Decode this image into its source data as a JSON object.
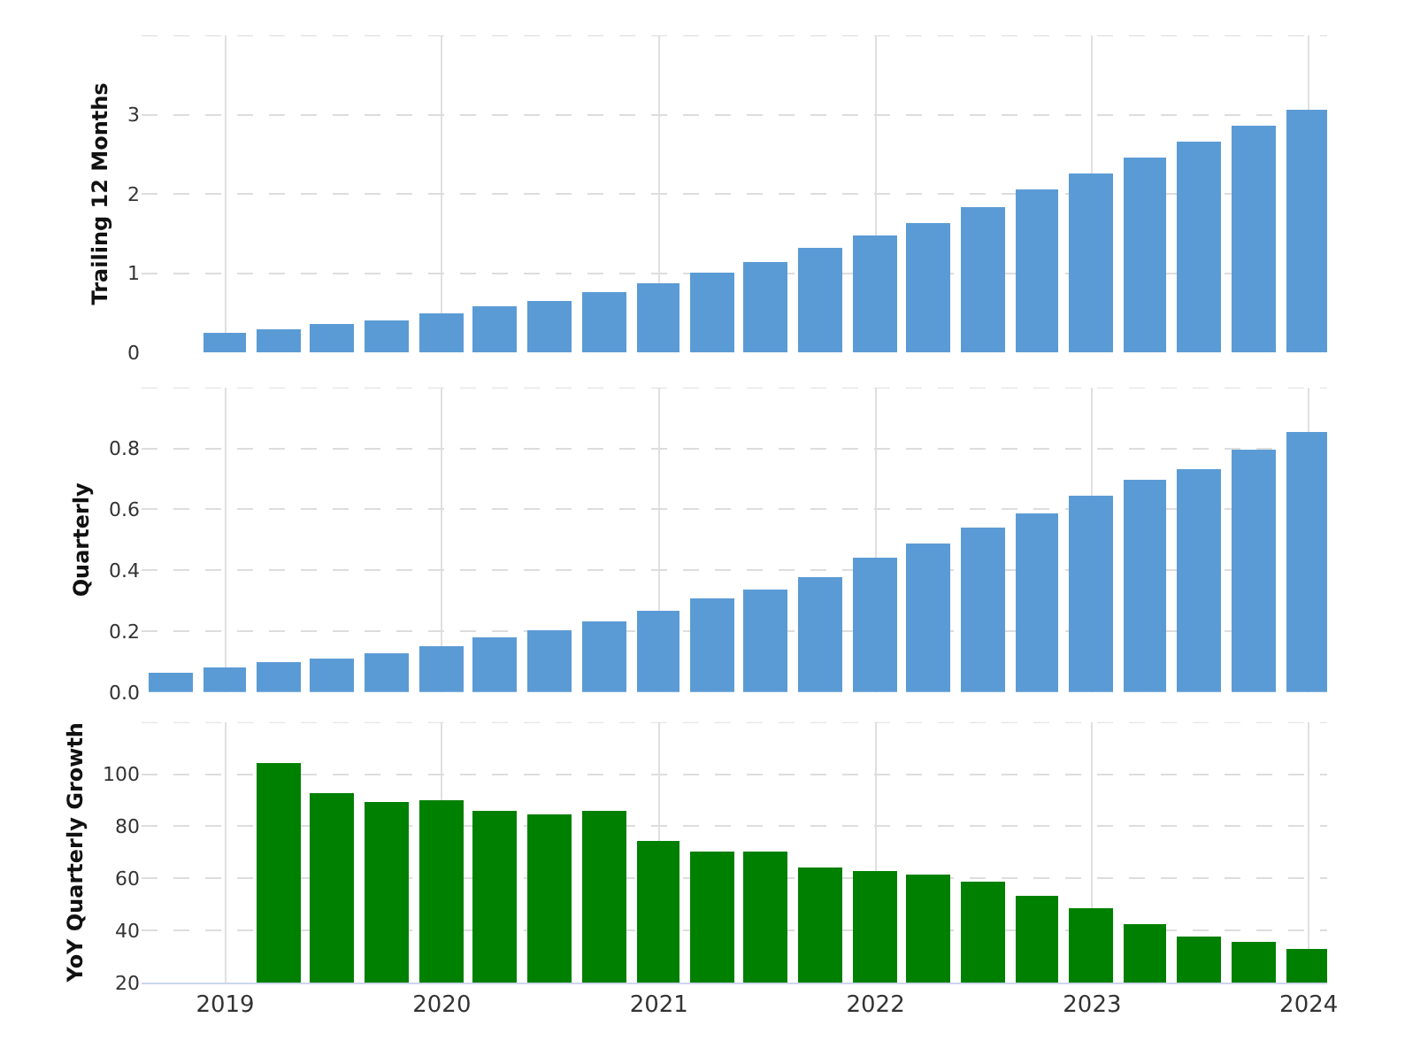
{
  "chart_data": [
    {
      "type": "bar",
      "ylabel": "Trailing 12 Months",
      "color": "#5b9bd5",
      "x": [
        "2018-12-31",
        "2019-03-31",
        "2019-06-30",
        "2019-09-30",
        "2019-12-31",
        "2020-03-31",
        "2020-06-30",
        "2020-09-30",
        "2020-12-31",
        "2021-03-31",
        "2021-06-30",
        "2021-09-30",
        "2021-12-31",
        "2022-03-31",
        "2022-06-30",
        "2022-09-30",
        "2022-12-31",
        "2023-03-31",
        "2023-06-30",
        "2023-09-30",
        "2023-12-31"
      ],
      "values": [
        0.25,
        0.3,
        0.36,
        0.41,
        0.5,
        0.57,
        0.65,
        0.77,
        0.87,
        1.01,
        1.15,
        1.31,
        1.47,
        1.64,
        1.84,
        2.05,
        2.25,
        2.45,
        2.65,
        2.85,
        3.07
      ],
      "xlim": [
        "2018-08-13",
        "2024-02-01"
      ],
      "xticks": [
        "2019",
        "2020",
        "2021",
        "2022",
        "2023",
        "2024"
      ],
      "ylim": [
        0,
        4
      ],
      "yticks": [
        0,
        1,
        2,
        3,
        {
          "value": 4,
          "label": null
        }
      ],
      "grid": true,
      "tick_labels": "y"
    },
    {
      "type": "bar",
      "ylabel": "Quarterly",
      "color": "#5b9bd5",
      "x": [
        "2018-09-30",
        "2018-12-31",
        "2019-03-31",
        "2019-06-30",
        "2019-09-30",
        "2019-12-31",
        "2020-03-31",
        "2020-06-30",
        "2020-09-30",
        "2020-12-31",
        "2021-03-31",
        "2021-06-30",
        "2021-09-30",
        "2021-12-31",
        "2022-03-31",
        "2022-06-30",
        "2022-09-30",
        "2022-12-31",
        "2023-03-31",
        "2023-06-30",
        "2023-09-30",
        "2023-12-31"
      ],
      "values": [
        0.065,
        0.08,
        0.1,
        0.11,
        0.13,
        0.15,
        0.18,
        0.205,
        0.23,
        0.27,
        0.31,
        0.34,
        0.38,
        0.44,
        0.49,
        0.54,
        0.59,
        0.645,
        0.7,
        0.735,
        0.795,
        0.855
      ],
      "xlim": [
        "2018-08-13",
        "2024-02-01"
      ],
      "xticks": [
        "2019",
        "2020",
        "2021",
        "2022",
        "2023",
        "2024"
      ],
      "ylim": [
        0,
        1
      ],
      "yticks": [
        {
          "value": 0,
          "label": "0.0"
        },
        0.2,
        0.4,
        0.6,
        0.8,
        {
          "value": 1,
          "label": null
        }
      ],
      "grid": true,
      "tick_labels": "y"
    },
    {
      "type": "bar",
      "ylabel": "YoY Quarterly Growth",
      "color": "#008000",
      "x": [
        "2019-03-31",
        "2019-06-30",
        "2019-09-30",
        "2019-12-31",
        "2020-03-31",
        "2020-06-30",
        "2020-09-30",
        "2020-12-31",
        "2021-03-31",
        "2021-06-30",
        "2021-09-30",
        "2021-12-31",
        "2022-03-31",
        "2022-06-30",
        "2022-09-30",
        "2022-12-31",
        "2023-03-31",
        "2023-06-30",
        "2023-09-30",
        "2023-12-31"
      ],
      "values": [
        104.5,
        92.8,
        89.3,
        90,
        86.2,
        84.5,
        86.2,
        74.5,
        70.3,
        70.3,
        64.1,
        62.8,
        61.4,
        58.6,
        53.1,
        48.6,
        42.4,
        37.6,
        35.5,
        32.8
      ],
      "xlim": [
        "2018-08-13",
        "2024-02-01"
      ],
      "xticks": [
        "2019",
        "2020",
        "2021",
        "2022",
        "2023",
        "2024"
      ],
      "ylim": [
        20,
        120
      ],
      "yticks": [
        20,
        40,
        60,
        80,
        100,
        {
          "value": 120,
          "label": null
        }
      ],
      "grid": true
    }
  ]
}
